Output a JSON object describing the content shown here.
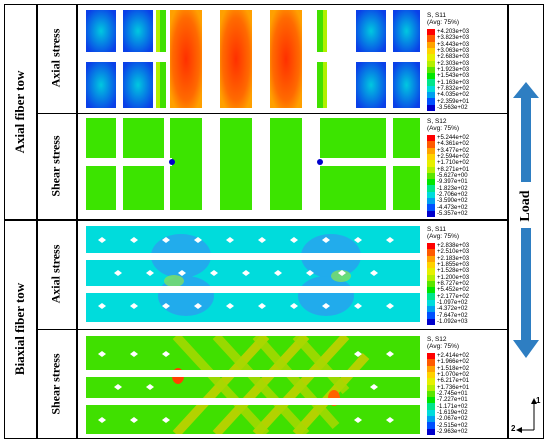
{
  "sections": [
    {
      "label": "Axial fiber tow",
      "rows": [
        {
          "label": "Axial stress",
          "legend": {
            "title": "S, S11",
            "avg": "(Avg: 75%)",
            "values": [
              "+4.203e+03",
              "+3.823e+03",
              "+3.443e+03",
              "+3.063e+03",
              "+2.683e+03",
              "+2.303e+03",
              "+1.923e+03",
              "+1.543e+03",
              "+1.163e+03",
              "+7.832e+02",
              "+4.035e+02",
              "+2.359e+01",
              "-3.563e+02"
            ]
          }
        },
        {
          "label": "Shear stress",
          "legend": {
            "title": "S, S12",
            "avg": "(Avg: 75%)",
            "values": [
              "+5.244e+02",
              "+4.361e+02",
              "+3.477e+02",
              "+2.594e+02",
              "+1.710e+02",
              "+8.271e+01",
              "-5.627e+00",
              "-9.397e+01",
              "-1.823e+02",
              "-2.706e+02",
              "-3.590e+02",
              "-4.473e+02",
              "-5.357e+02"
            ]
          }
        }
      ]
    },
    {
      "label": "Biaxial fiber tow",
      "rows": [
        {
          "label": "Axial stress",
          "legend": {
            "title": "S, S11",
            "avg": "(Avg: 75%)",
            "values": [
              "+2.838e+03",
              "+2.510e+03",
              "+2.183e+03",
              "+1.855e+03",
              "+1.528e+03",
              "+1.200e+03",
              "+8.727e+02",
              "+5.452e+02",
              "+2.177e+02",
              "-1.097e+02",
              "-4.372e+02",
              "-7.647e+02",
              "-1.092e+03"
            ]
          }
        },
        {
          "label": "Shear stress",
          "legend": {
            "title": "S, S12",
            "avg": "(Avg: 75%)",
            "values": [
              "+2.414e+02",
              "+1.966e+02",
              "+1.518e+02",
              "+1.070e+02",
              "+6.217e+01",
              "+1.736e+01",
              "-2.745e+01",
              "-7.227e+01",
              "-1.171e+02",
              "-1.619e+02",
              "-2.067e+02",
              "-2.515e+02",
              "-2.963e+02"
            ]
          }
        }
      ]
    }
  ],
  "load_label": "Load",
  "axes": {
    "vertical": "1",
    "horizontal": "2"
  },
  "colors": {
    "scale": [
      "#ff0000",
      "#ff5a00",
      "#ffa300",
      "#ffd200",
      "#e6f000",
      "#b4f000",
      "#5ae600",
      "#00e600",
      "#00e68c",
      "#00dcdc",
      "#00a0f0",
      "#0050ff",
      "#0000cc"
    ],
    "arrow": "#2e7ec2"
  }
}
